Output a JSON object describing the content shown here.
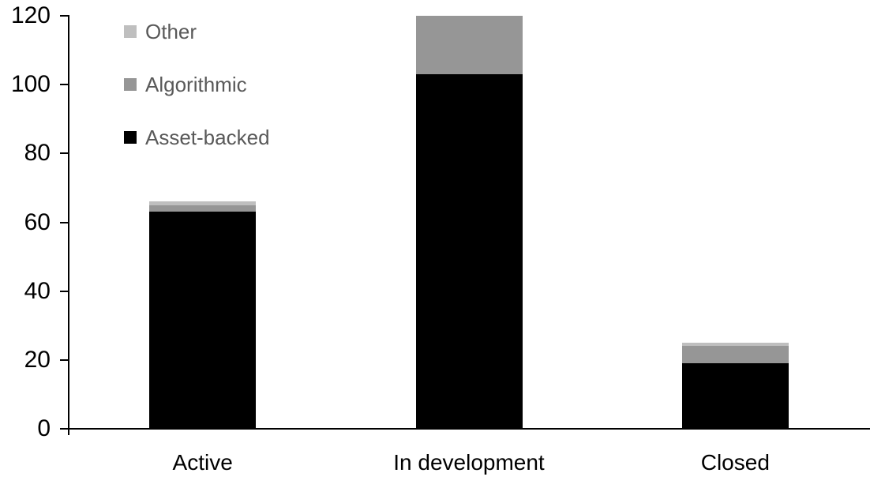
{
  "chart_data": {
    "type": "bar",
    "stacked": true,
    "title": "",
    "xlabel": "",
    "ylabel": "",
    "background": "#ffffff",
    "grid": false,
    "categories": [
      "Active",
      "In development",
      "Closed"
    ],
    "series": [
      {
        "name": "Asset-backed",
        "color": "#000000",
        "values": [
          63,
          103,
          19
        ]
      },
      {
        "name": "Algorithmic",
        "color": "#969696",
        "values": [
          2,
          17,
          5
        ]
      },
      {
        "name": "Other",
        "color": "#bfbfbf",
        "values": [
          1,
          0,
          1
        ]
      }
    ],
    "y_axis": {
      "min": 0,
      "max": 120,
      "tick_step": 20,
      "tick_labels": [
        "0",
        "20",
        "40",
        "60",
        "80",
        "100",
        "120"
      ]
    },
    "legend": {
      "position": "top-left",
      "order_top_to_bottom": [
        "Other",
        "Algorithmic",
        "Asset-backed"
      ],
      "text_color": "#595959"
    },
    "axis_color": "#000000"
  }
}
